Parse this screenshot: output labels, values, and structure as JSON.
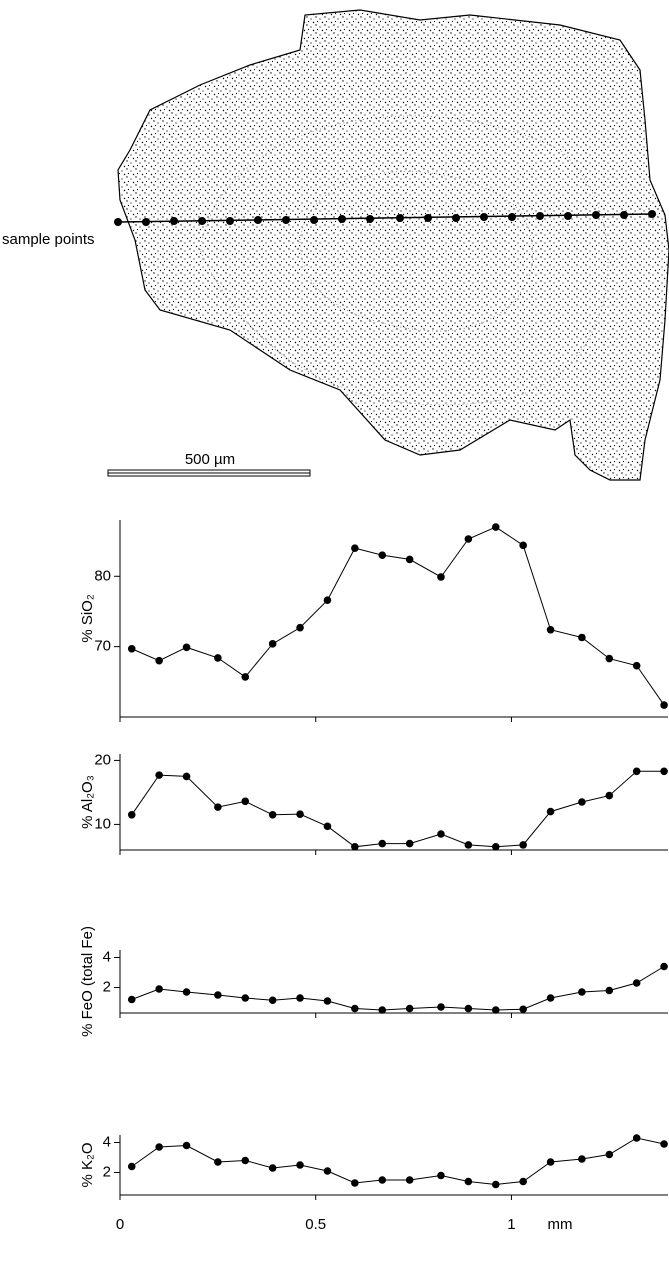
{
  "drawing": {
    "sample_label": "sample points",
    "scale_label": "500 µm"
  },
  "chart_data": [
    {
      "type": "line",
      "y_label": "% SiO₂",
      "xlim": [
        0,
        1.4
      ],
      "ylim": [
        60,
        88
      ],
      "yticks": [
        70,
        80
      ],
      "x": [
        0.03,
        0.1,
        0.17,
        0.25,
        0.32,
        0.39,
        0.46,
        0.53,
        0.6,
        0.67,
        0.74,
        0.82,
        0.89,
        0.96,
        1.03,
        1.1,
        1.18,
        1.25,
        1.32,
        1.39
      ],
      "values": [
        69.7,
        68.0,
        69.9,
        68.4,
        65.7,
        70.4,
        72.7,
        76.6,
        84.0,
        83.0,
        82.4,
        79.9,
        85.3,
        87.0,
        84.4,
        72.4,
        71.3,
        68.3,
        67.3,
        61.7
      ],
      "color": "#000000"
    },
    {
      "type": "line",
      "y_label": "% Al₂O₃",
      "xlim": [
        0,
        1.4
      ],
      "ylim": [
        6,
        21
      ],
      "yticks": [
        10,
        20
      ],
      "x": [
        0.03,
        0.1,
        0.17,
        0.25,
        0.32,
        0.39,
        0.46,
        0.53,
        0.6,
        0.67,
        0.74,
        0.82,
        0.89,
        0.96,
        1.03,
        1.1,
        1.18,
        1.25,
        1.32,
        1.39
      ],
      "values": [
        11.5,
        17.7,
        17.5,
        12.7,
        13.6,
        11.5,
        11.6,
        9.7,
        6.5,
        7.0,
        7.0,
        8.5,
        6.8,
        6.5,
        6.8,
        12.0,
        13.5,
        14.5,
        18.3,
        18.3
      ],
      "color": "#000000"
    },
    {
      "type": "line",
      "y_label": "% FeO (total Fe)",
      "xlim": [
        0,
        1.4
      ],
      "ylim": [
        0.3,
        4.5
      ],
      "yticks": [
        2,
        4
      ],
      "x": [
        0.03,
        0.1,
        0.17,
        0.25,
        0.32,
        0.39,
        0.46,
        0.53,
        0.6,
        0.67,
        0.74,
        0.82,
        0.89,
        0.96,
        1.03,
        1.1,
        1.18,
        1.25,
        1.32,
        1.39
      ],
      "values": [
        1.2,
        1.9,
        1.7,
        1.5,
        1.3,
        1.15,
        1.3,
        1.1,
        0.6,
        0.5,
        0.6,
        0.7,
        0.6,
        0.5,
        0.55,
        1.3,
        1.7,
        1.8,
        2.3,
        3.4
      ],
      "color": "#000000"
    },
    {
      "type": "line",
      "y_label": "% K₂O",
      "x_label": "mm",
      "xlim": [
        0,
        1.4
      ],
      "ylim": [
        0.5,
        4.5
      ],
      "yticks": [
        2,
        4
      ],
      "xticks": [
        0,
        0.5,
        1
      ],
      "x": [
        0.03,
        0.1,
        0.17,
        0.25,
        0.32,
        0.39,
        0.46,
        0.53,
        0.6,
        0.67,
        0.74,
        0.82,
        0.89,
        0.96,
        1.03,
        1.1,
        1.18,
        1.25,
        1.32,
        1.39
      ],
      "values": [
        2.4,
        3.7,
        3.8,
        2.7,
        2.8,
        2.3,
        2.5,
        2.1,
        1.3,
        1.5,
        1.5,
        1.8,
        1.4,
        1.2,
        1.4,
        2.7,
        2.9,
        3.2,
        4.3,
        3.9
      ],
      "color": "#000000"
    }
  ]
}
